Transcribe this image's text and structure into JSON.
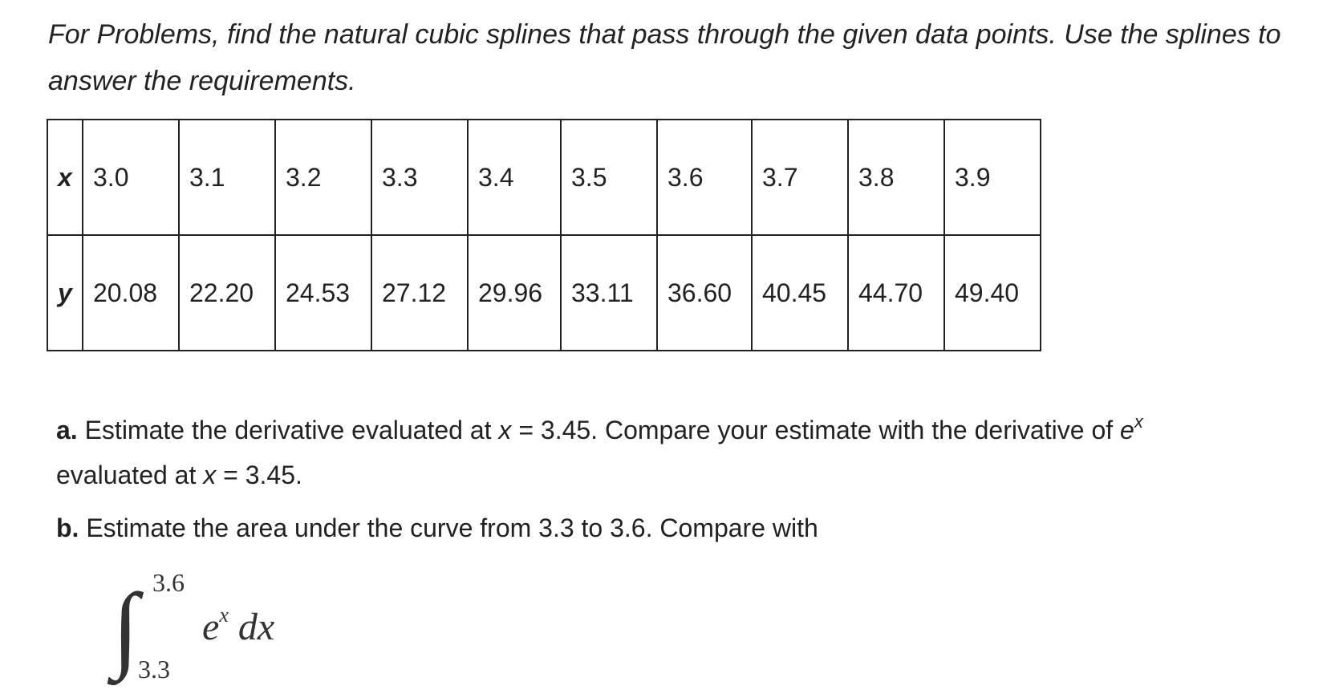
{
  "intro": "For Problems, find the natural cubic splines that pass through the given data points. Use the splines to answer the requirements.",
  "table": {
    "x_label": "x",
    "y_label": "y",
    "x_values": [
      "3.0",
      "3.1",
      "3.2",
      "3.3",
      "3.4",
      "3.5",
      "3.6",
      "3.7",
      "3.8",
      "3.9"
    ],
    "y_values": [
      "20.08",
      "22.20",
      "24.53",
      "27.12",
      "29.96",
      "33.11",
      "36.60",
      "40.45",
      "44.70",
      "49.40"
    ]
  },
  "part_a": {
    "label": "a.",
    "text_1": " Estimate the derivative evaluated at ",
    "var_1": "x",
    "text_2": " = 3.45. Compare your estimate with the derivative of ",
    "base": "e",
    "exponent": "x",
    "line_2_text_1": "evaluated at ",
    "var_2": "x",
    "line_2_text_2": " = 3.45."
  },
  "part_b": {
    "label": "b.",
    "text": " Estimate the area under the curve from 3.3 to 3.6. Compare with"
  },
  "integral": {
    "symbol": "∫",
    "upper": "3.6",
    "lower": "3.3",
    "base": "e",
    "exponent": "x",
    "differential": " dx"
  }
}
